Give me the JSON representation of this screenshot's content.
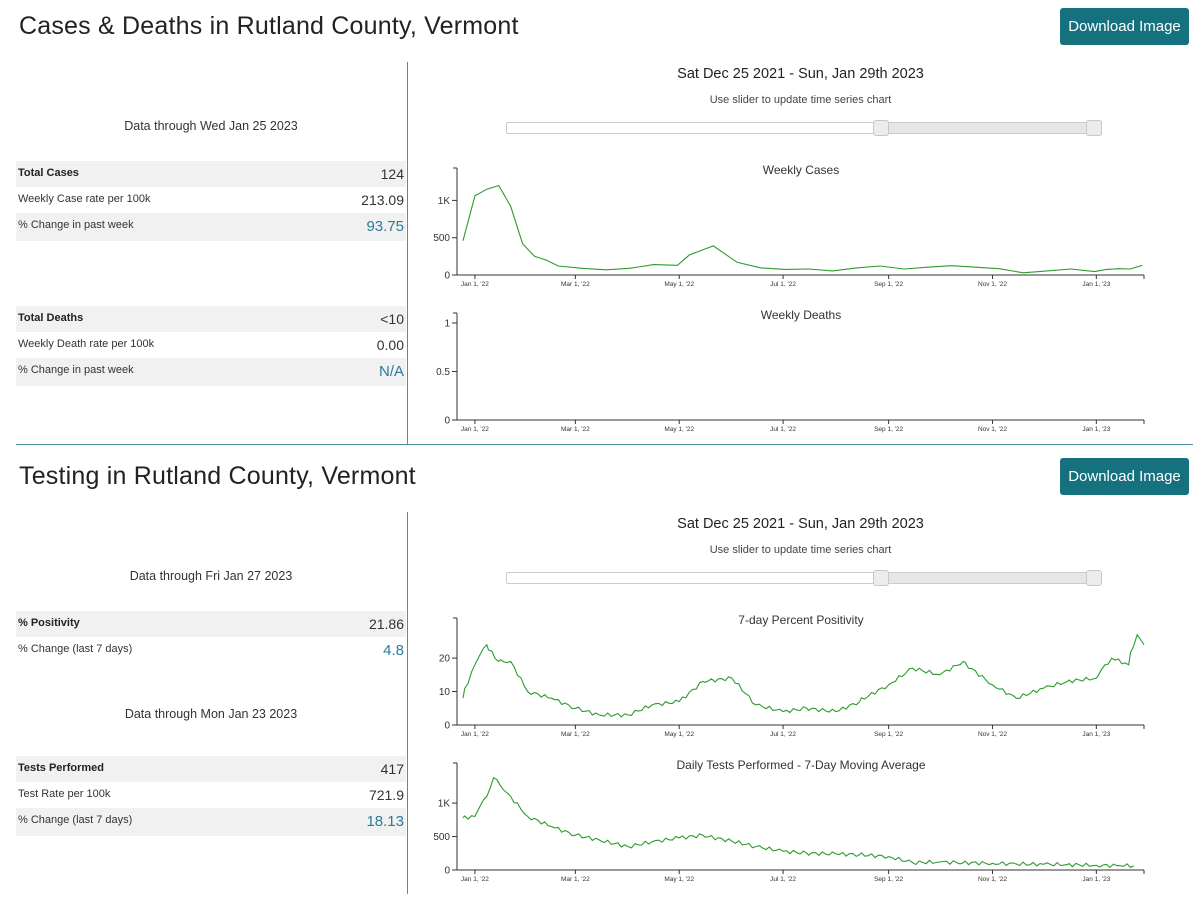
{
  "cases_section": {
    "title": "Cases & Deaths in Rutland County, Vermont",
    "download_label": "Download Image",
    "range_title": "Sat Dec 25 2021 - Sun, Jan 29th 2023",
    "range_hint": "Use slider to update time series chart",
    "slider": {
      "start_fraction": 0.0,
      "handle_a_fraction": 0.64,
      "handle_b_fraction": 1.0
    },
    "data_through": "Data through Wed Jan 25 2023",
    "cases_stats": [
      {
        "label": "Total Cases",
        "value": "124"
      },
      {
        "label": "Weekly Case rate per 100k",
        "value": "213.09"
      },
      {
        "label": "% Change in past week",
        "value": "93.75"
      }
    ],
    "deaths_stats": [
      {
        "label": "Total Deaths",
        "value": "<10"
      },
      {
        "label": "Weekly Death rate per 100k",
        "value": "0.00"
      },
      {
        "label": "% Change in past week",
        "value": "N/A"
      }
    ]
  },
  "tests_section": {
    "title": "Testing in Rutland County, Vermont",
    "download_label": "Download Image",
    "range_title": "Sat Dec 25 2021 - Sun, Jan 29th 2023",
    "range_hint": "Use slider to update time series chart",
    "positivity_through": "Data through Fri Jan 27 2023",
    "positivity_stats": [
      {
        "label": "% Positivity",
        "value": "21.86"
      },
      {
        "label": "% Change (last 7 days)",
        "value": "4.8"
      }
    ],
    "tests_through": "Data through Mon Jan 23 2023",
    "tests_stats": [
      {
        "label": "Tests Performed",
        "value": "417"
      },
      {
        "label": "Test Rate per 100k",
        "value": "721.9"
      },
      {
        "label": "% Change (last 7 days)",
        "value": "18.13"
      }
    ]
  },
  "colors": {
    "accent": "#16717f",
    "series": "#2e9a2e",
    "divider": "#4d8fa5",
    "value_blue": "#2a7b9c",
    "row_shade": "#f1f1f1"
  },
  "chart_data": [
    {
      "type": "line",
      "title": "Weekly Cases",
      "x_ticks": [
        "Jan 1, '22",
        "Mar 1, '22",
        "May 1, '22",
        "Jul 1, '22",
        "Sep 1, '22",
        "Nov 1, '22",
        "Jan 1, '23"
      ],
      "y_ticks": [
        "0",
        "500",
        "1K"
      ],
      "ylim": [
        0,
        1300
      ],
      "xlim": [
        "2021-12-25",
        "2023-01-29"
      ],
      "x": [
        "2021-12-25",
        "2022-01-01",
        "2022-01-08",
        "2022-01-15",
        "2022-01-22",
        "2022-01-29",
        "2022-02-05",
        "2022-02-12",
        "2022-02-19",
        "2022-03-05",
        "2022-03-19",
        "2022-04-02",
        "2022-04-16",
        "2022-04-30",
        "2022-05-07",
        "2022-05-14",
        "2022-05-21",
        "2022-05-28",
        "2022-06-04",
        "2022-06-18",
        "2022-07-02",
        "2022-07-16",
        "2022-07-30",
        "2022-08-13",
        "2022-08-27",
        "2022-09-10",
        "2022-09-24",
        "2022-10-08",
        "2022-10-22",
        "2022-11-05",
        "2022-11-19",
        "2022-12-03",
        "2022-12-17",
        "2022-12-31",
        "2023-01-07",
        "2023-01-14",
        "2023-01-21",
        "2023-01-28"
      ],
      "y": [
        460,
        1060,
        1150,
        1200,
        920,
        420,
        250,
        200,
        120,
        90,
        70,
        90,
        140,
        130,
        270,
        330,
        390,
        280,
        170,
        95,
        75,
        80,
        55,
        95,
        120,
        80,
        105,
        125,
        105,
        85,
        30,
        55,
        80,
        45,
        75,
        85,
        80,
        130
      ]
    },
    {
      "type": "line",
      "title": "Weekly Deaths",
      "x_ticks": [
        "Jan 1, '22",
        "Mar 1, '22",
        "May 1, '22",
        "Jul 1, '22",
        "Sep 1, '22",
        "Nov 1, '22",
        "Jan 1, '23"
      ],
      "y_ticks": [
        "0",
        "0.5",
        "1"
      ],
      "ylim": [
        0,
        1
      ],
      "xlim": [
        "2021-12-25",
        "2023-01-29"
      ],
      "x": [],
      "y": []
    },
    {
      "type": "line",
      "title": "7-day Percent Positivity",
      "x_ticks": [
        "Jan 1, '22",
        "Mar 1, '22",
        "May 1, '22",
        "Jul 1, '22",
        "Sep 1, '22",
        "Nov 1, '22",
        "Jan 1, '23"
      ],
      "y_ticks": [
        "0",
        "10",
        "20"
      ],
      "ylim": [
        0,
        29
      ],
      "xlim": [
        "2021-12-25",
        "2023-01-29"
      ],
      "x": [
        "2021-12-25",
        "2022-01-01",
        "2022-01-08",
        "2022-01-15",
        "2022-01-22",
        "2022-02-01",
        "2022-02-15",
        "2022-03-01",
        "2022-03-15",
        "2022-04-01",
        "2022-04-15",
        "2022-05-01",
        "2022-05-15",
        "2022-06-01",
        "2022-06-15",
        "2022-07-01",
        "2022-07-15",
        "2022-08-01",
        "2022-08-15",
        "2022-09-01",
        "2022-09-15",
        "2022-10-01",
        "2022-10-15",
        "2022-11-01",
        "2022-11-15",
        "2022-12-01",
        "2022-12-15",
        "2023-01-01",
        "2023-01-10",
        "2023-01-20",
        "2023-01-25",
        "2023-01-29"
      ],
      "y": [
        8,
        18,
        24,
        19,
        19,
        10,
        8,
        5,
        3,
        3,
        6,
        7,
        13,
        14,
        6,
        4,
        5,
        4,
        7,
        12,
        17,
        15,
        19,
        12,
        8,
        11,
        13,
        14,
        20,
        18,
        27,
        24
      ]
    },
    {
      "type": "line",
      "title": "Daily Tests Performed - 7-Day Moving Average",
      "x_ticks": [
        "Jan 1, '22",
        "Mar 1, '22",
        "May 1, '22",
        "Jul 1, '22",
        "Sep 1, '22",
        "Nov 1, '22",
        "Jan 1, '23"
      ],
      "y_ticks": [
        "0",
        "500",
        "1K"
      ],
      "ylim": [
        0,
        1450
      ],
      "xlim": [
        "2021-12-25",
        "2023-01-29"
      ],
      "x": [
        "2021-12-25",
        "2022-01-01",
        "2022-01-08",
        "2022-01-12",
        "2022-01-20",
        "2022-02-01",
        "2022-02-15",
        "2022-03-01",
        "2022-03-15",
        "2022-04-01",
        "2022-04-15",
        "2022-05-01",
        "2022-05-15",
        "2022-06-01",
        "2022-06-15",
        "2022-07-01",
        "2022-07-15",
        "2022-08-01",
        "2022-08-15",
        "2022-09-01",
        "2022-09-15",
        "2022-10-01",
        "2022-10-15",
        "2022-11-01",
        "2022-11-15",
        "2022-12-01",
        "2022-12-15",
        "2023-01-01",
        "2023-01-15",
        "2023-01-23"
      ],
      "y": [
        780,
        800,
        1100,
        1380,
        1150,
        800,
        650,
        520,
        450,
        350,
        420,
        480,
        520,
        430,
        350,
        280,
        250,
        240,
        230,
        200,
        110,
        120,
        110,
        100,
        90,
        85,
        80,
        70,
        65,
        65
      ]
    }
  ]
}
